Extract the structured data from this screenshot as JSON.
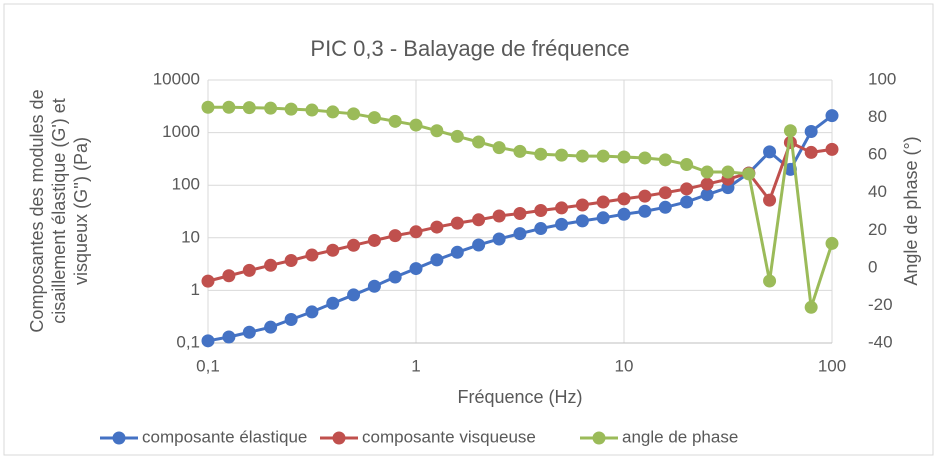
{
  "chart_data": {
    "type": "line",
    "title": "PIC 0,3 - Balayage de fréquence",
    "xlabel": "Fréquence (Hz)",
    "ylabel": [
      "Composantes des modules de",
      "cisaillement élastique (G') et",
      "visqueux (G'') (Pa)"
    ],
    "y2label": "Angle de phase (°)",
    "xscale": "log",
    "yscale": "log",
    "xlim": [
      0.1,
      100
    ],
    "xticks": [
      {
        "value": 0.1,
        "label": "0,1"
      },
      1,
      10,
      100
    ],
    "ylim": [
      0.1,
      10000
    ],
    "yticks": [
      {
        "value": 0.1,
        "label": "0,1"
      },
      1,
      10,
      100,
      1000,
      10000
    ],
    "y2lim": [
      -40,
      100
    ],
    "y2ticks": [
      -40,
      -20,
      0,
      20,
      40,
      60,
      80,
      100
    ],
    "grid": true,
    "legend": "bottom",
    "x": [
      0.1,
      0.126,
      0.158,
      0.2,
      0.251,
      0.316,
      0.398,
      0.501,
      0.631,
      0.794,
      1,
      1.26,
      1.58,
      2,
      2.51,
      3.16,
      3.98,
      5.01,
      6.31,
      7.94,
      10,
      12.6,
      15.8,
      20,
      25.1,
      31.6,
      39.8,
      50.1,
      63.1,
      79.4,
      100
    ],
    "series": [
      {
        "name": "composante élastique",
        "color": "#4472c4",
        "values": [
          0.11,
          0.13,
          0.16,
          0.2,
          0.28,
          0.39,
          0.57,
          0.82,
          1.2,
          1.8,
          2.6,
          3.8,
          5.3,
          7.3,
          9.5,
          12,
          15,
          18,
          21,
          24,
          28,
          32,
          38,
          48,
          66,
          90,
          170,
          430,
          200,
          1050,
          2100
        ]
      },
      {
        "name": "composante visqueuse",
        "color": "#c0504d",
        "values": [
          1.5,
          1.9,
          2.4,
          3.0,
          3.7,
          4.7,
          5.8,
          7.2,
          8.9,
          11,
          13,
          16,
          19,
          22,
          26,
          29,
          33,
          37,
          42,
          48,
          55,
          62,
          72,
          85,
          105,
          130,
          170,
          52,
          650,
          420,
          480
        ]
      },
      {
        "name": "angle de phase",
        "color": "#9bbb59",
        "axis": "y2",
        "values": [
          85.5,
          85.5,
          85.3,
          85,
          84.5,
          84,
          83,
          82,
          80,
          78,
          76,
          73,
          70,
          67,
          64,
          62,
          60.5,
          60,
          59.5,
          59.5,
          59,
          58.5,
          57.5,
          55,
          51,
          51,
          50,
          -7,
          73,
          -21,
          13
        ]
      }
    ]
  }
}
